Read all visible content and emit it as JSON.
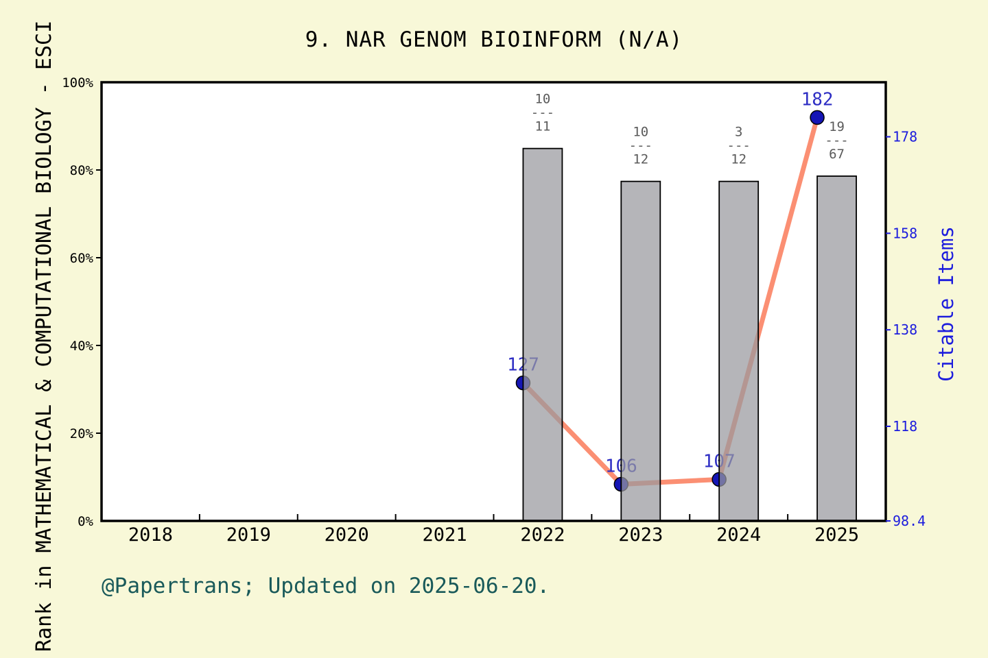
{
  "page": {
    "background_color": "#f8f8d8",
    "footer": "@Papertrans; Updated on 2025-06-20."
  },
  "chart_data": {
    "type": "bar+line",
    "title": "9. NAR GENOM BIOINFORM (N/A)",
    "x_categories": [
      "2018",
      "2019",
      "2020",
      "2021",
      "2022",
      "2023",
      "2024",
      "2025"
    ],
    "left_axis": {
      "label": "Rank in MATHEMATICAL & COMPUTATIONAL BIOLOGY - ESCI",
      "ticks": [
        0,
        20,
        40,
        60,
        80,
        100
      ],
      "tick_labels": [
        "0%",
        "20%",
        "40%",
        "60%",
        "80%",
        "100%"
      ],
      "range": [
        0,
        100
      ],
      "color": "#000000"
    },
    "right_axis": {
      "label": "Citable Items",
      "ticks": [
        118,
        138,
        158,
        178
      ],
      "bottom_label": "98.4",
      "range": [
        98.4,
        189.3
      ],
      "color": "#1c1cdd"
    },
    "bars": {
      "name": "rank-percentile-bars",
      "fill_color": "rgba(152,152,158,0.72)",
      "border_color": "#000000",
      "data": [
        {
          "year": "2022",
          "height_pct": 84.9,
          "fraction_top": "10",
          "fraction_bottom": "11"
        },
        {
          "year": "2023",
          "height_pct": 77.4,
          "fraction_top": "10",
          "fraction_bottom": "12"
        },
        {
          "year": "2024",
          "height_pct": 77.4,
          "fraction_top": "3",
          "fraction_bottom": "12"
        },
        {
          "year": "2025",
          "height_pct": 78.6,
          "fraction_top": "19",
          "fraction_bottom": "67"
        }
      ],
      "fraction_dash": "---",
      "fraction_color": "#5a5a5a"
    },
    "line": {
      "name": "citable-items-line",
      "color": "rgba(250,95,55,0.7)",
      "dot_color": "#1515b5",
      "dot_border_color": "#000000",
      "label_color": "#2e2ec4",
      "points": [
        {
          "year": "2022",
          "value": 127
        },
        {
          "year": "2023",
          "value": 106
        },
        {
          "year": "2024",
          "value": 107
        },
        {
          "year": "2025",
          "value": 182
        }
      ]
    },
    "grid": false,
    "legend": "none"
  }
}
